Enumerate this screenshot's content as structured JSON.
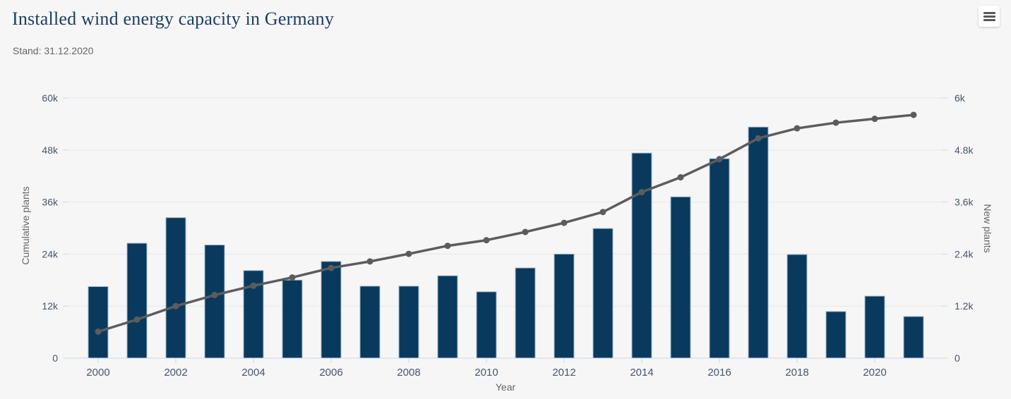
{
  "header": {
    "title": "Installed wind energy capacity in Germany",
    "subtitle": "Stand: 31.12.2020"
  },
  "icons": {
    "context_menu": "hamburger-menu-icon"
  },
  "colors": {
    "background": "#f6f6f7",
    "title": "#1a3e66",
    "subtitle": "#666666",
    "bar_fill": "#093a5d",
    "bar_border": "#a3b8c8",
    "line": "#5c5c5e",
    "grid": "#e7e7e9",
    "axis_line": "#ccd6eb",
    "tick_label": "#49556a",
    "axis_title_text": "#666666"
  },
  "chart_data": {
    "type": "combo_bar_line",
    "title": "Installed wind energy capacity in Germany",
    "subtitle": "Stand: 31.12.2020",
    "x": [
      2000,
      2001,
      2002,
      2003,
      2004,
      2005,
      2006,
      2007,
      2008,
      2009,
      2010,
      2011,
      2012,
      2013,
      2014,
      2015,
      2016,
      2017,
      2018,
      2019,
      2020,
      2021
    ],
    "xticks_labeled": [
      2000,
      2002,
      2004,
      2006,
      2008,
      2010,
      2012,
      2014,
      2016,
      2018,
      2020
    ],
    "xlabel": "Year",
    "grid": true,
    "legend": false,
    "yaxis_left": {
      "title": "Cumulative plants",
      "min": 0,
      "max": 60000,
      "ticks": [
        "0",
        "12k",
        "24k",
        "36k",
        "48k",
        "60k"
      ]
    },
    "yaxis_right": {
      "title": "New plants",
      "min": 0,
      "max": 6000,
      "ticks": [
        "0",
        "1.2k",
        "2.4k",
        "3.6k",
        "4.8k",
        "6k"
      ]
    },
    "series": [
      {
        "name": "New plants",
        "type": "bar",
        "axis": "right",
        "color": "#093a5d",
        "values": [
          1650,
          2650,
          3240,
          2610,
          2020,
          1800,
          2230,
          1660,
          1660,
          1900,
          1530,
          2080,
          2400,
          2990,
          4730,
          3720,
          4600,
          5330,
          2390,
          1075,
          1430,
          960
        ]
      },
      {
        "name": "Cumulative plants",
        "type": "line",
        "axis": "left",
        "color": "#5c5c5e",
        "values": [
          6100,
          8900,
          12000,
          14550,
          16700,
          18600,
          20800,
          22300,
          24050,
          25900,
          27200,
          29100,
          31200,
          33700,
          38300,
          41700,
          45900,
          50700,
          53000,
          54300,
          55200,
          56100
        ]
      }
    ]
  }
}
